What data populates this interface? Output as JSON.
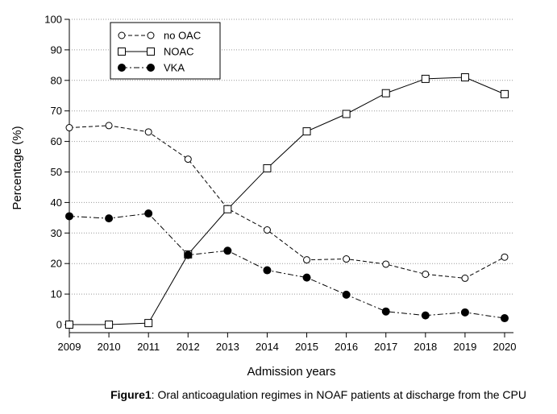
{
  "chart_data": {
    "type": "line",
    "x": [
      2009,
      2010,
      2011,
      2012,
      2013,
      2014,
      2015,
      2016,
      2017,
      2018,
      2019,
      2020
    ],
    "xlabel": "Admission years",
    "ylabel": "Percentage (%)",
    "ylim": [
      0,
      100
    ],
    "xlim": [
      2009,
      2020
    ],
    "yticks": [
      0,
      10,
      20,
      30,
      40,
      50,
      60,
      70,
      80,
      90,
      100
    ],
    "grid": "horizontal dotted",
    "legend_position": "top-left",
    "series": [
      {
        "name": "no OAC",
        "marker": "open-circle",
        "line": "dashed",
        "values": [
          64.5,
          65.2,
          63.1,
          54.2,
          38.0,
          31.0,
          21.2,
          21.5,
          19.8,
          16.5,
          15.2,
          22.1
        ]
      },
      {
        "name": "NOAC",
        "marker": "open-square",
        "line": "solid",
        "values": [
          0.0,
          0.0,
          0.5,
          23.0,
          37.8,
          51.2,
          63.3,
          69.0,
          75.8,
          80.5,
          81.0,
          75.5
        ]
      },
      {
        "name": "VKA",
        "marker": "filled-circle",
        "line": "dash-dot",
        "values": [
          35.5,
          34.8,
          36.4,
          22.8,
          24.2,
          17.8,
          15.4,
          9.8,
          4.3,
          3.0,
          4.0,
          2.1
        ]
      }
    ]
  },
  "caption": {
    "label": "Figure1",
    "text": ": Oral anticoagulation regimes in NOAF patients at discharge from the CPU"
  }
}
